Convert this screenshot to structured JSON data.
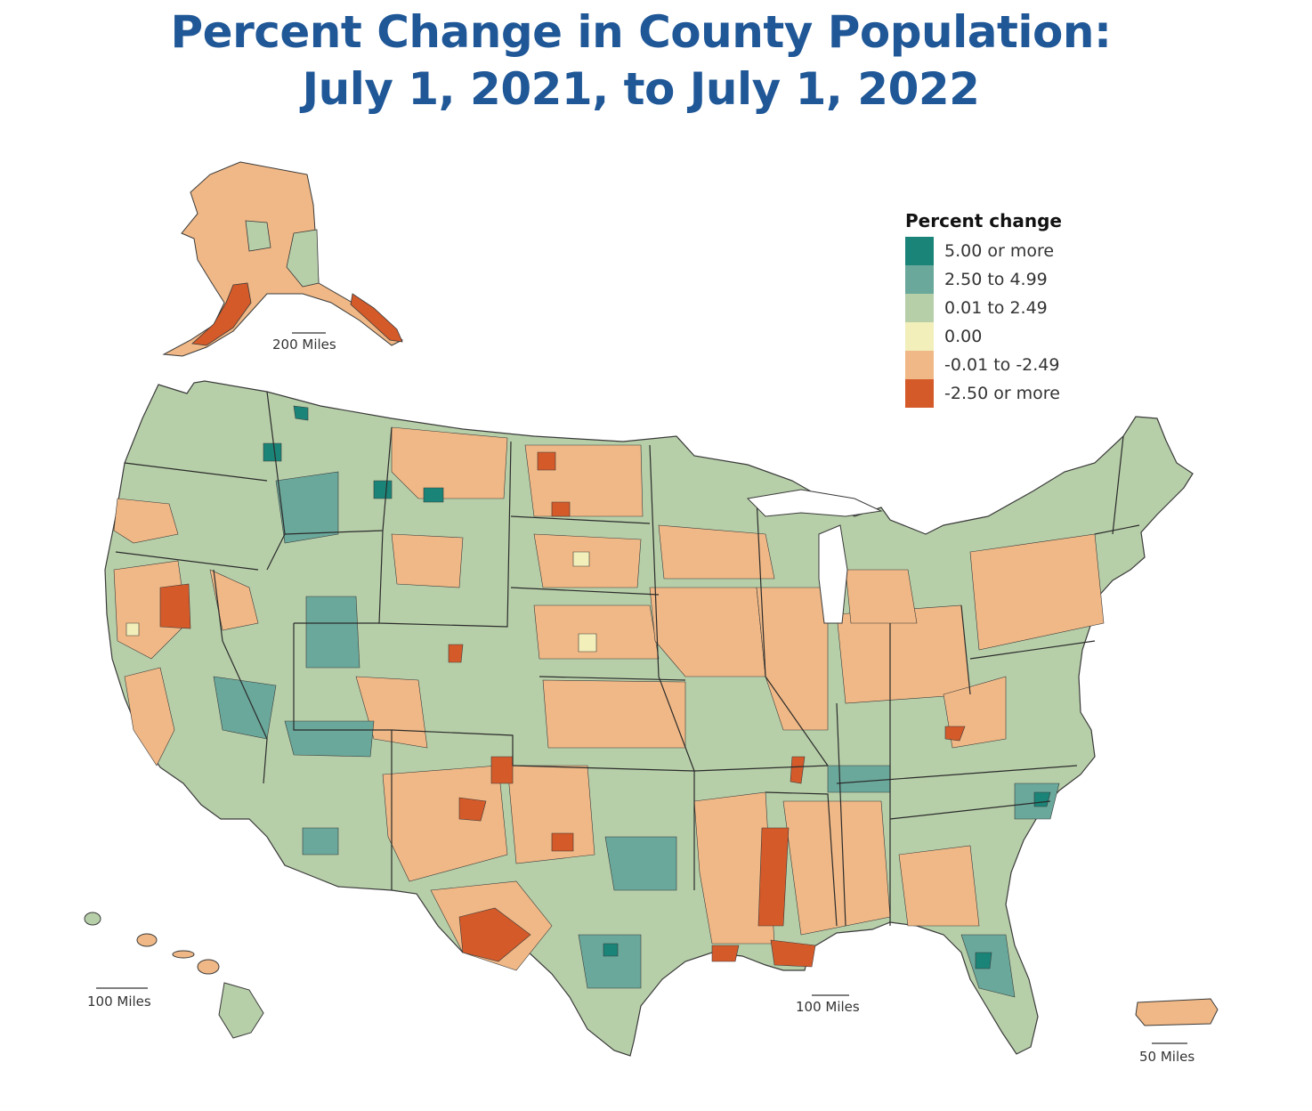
{
  "title": {
    "line1": "Percent Change in County Population:",
    "line2": "July 1, 2021, to July 1, 2022"
  },
  "legend": {
    "title": "Percent change",
    "items": [
      {
        "label": "5.00 or more",
        "color": "#1b8478"
      },
      {
        "label": "2.50 to 4.99",
        "color": "#6aa89b"
      },
      {
        "label": "0.01 to 2.49",
        "color": "#b7cfa9"
      },
      {
        "label": "0.00",
        "color": "#f2efbb"
      },
      {
        "label": "-0.01 to -2.49",
        "color": "#f0b886"
      },
      {
        "label": "-2.50 or more",
        "color": "#d45a2a"
      }
    ]
  },
  "scales": {
    "alaska": "200 Miles",
    "hawaii": "100 Miles",
    "conus": "100 Miles",
    "puerto_rico": "50 Miles"
  },
  "colors": {
    "title": "#1f5797",
    "border": "#3a3a3a",
    "land_base": "#b7cfa9"
  }
}
